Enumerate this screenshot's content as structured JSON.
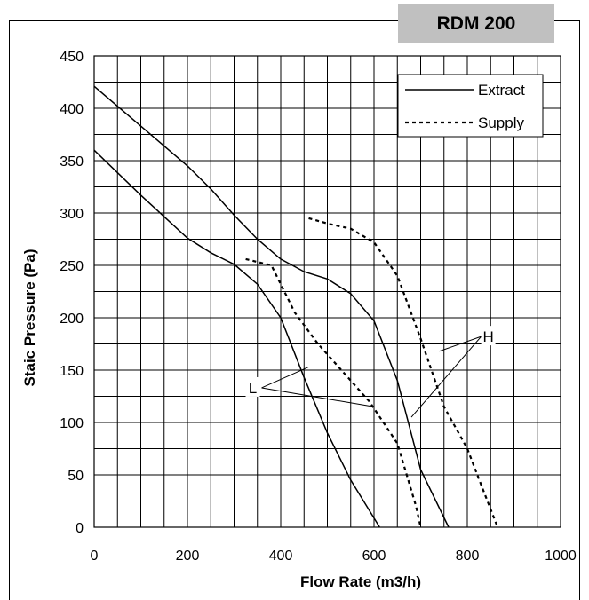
{
  "badge": "RDM 200",
  "chart_data": {
    "type": "line",
    "title": "RDM 200",
    "xlabel": "Flow Rate (m3/h)",
    "ylabel": "Staic Pressure (Pa)",
    "xlim": [
      0,
      1000
    ],
    "ylim": [
      0,
      450
    ],
    "xticks": [
      0,
      200,
      400,
      600,
      800,
      1000
    ],
    "yticks": [
      0,
      50,
      100,
      150,
      200,
      250,
      300,
      350,
      400,
      450
    ],
    "grid": true,
    "legend_position": "top-right",
    "legend": [
      "Extract",
      "Supply"
    ],
    "series": [
      {
        "name": "Extract",
        "level": "H",
        "style": "solid",
        "color": "#000000",
        "points": [
          [
            0,
            421
          ],
          [
            100,
            383
          ],
          [
            200,
            345
          ],
          [
            250,
            323
          ],
          [
            300,
            298
          ],
          [
            350,
            275
          ],
          [
            400,
            256
          ],
          [
            450,
            244
          ],
          [
            500,
            237
          ],
          [
            550,
            223
          ],
          [
            600,
            197
          ],
          [
            650,
            140
          ],
          [
            700,
            55
          ],
          [
            760,
            0
          ]
        ]
      },
      {
        "name": "Extract",
        "level": "L",
        "style": "solid",
        "color": "#000000",
        "points": [
          [
            0,
            360
          ],
          [
            100,
            317
          ],
          [
            200,
            276
          ],
          [
            250,
            262
          ],
          [
            300,
            251
          ],
          [
            350,
            232
          ],
          [
            400,
            200
          ],
          [
            450,
            143
          ],
          [
            500,
            90
          ],
          [
            550,
            45
          ],
          [
            612,
            0
          ]
        ]
      },
      {
        "name": "Supply",
        "level": "H",
        "style": "dotted",
        "color": "#000000",
        "points": [
          [
            460,
            295
          ],
          [
            500,
            290
          ],
          [
            550,
            285
          ],
          [
            600,
            272
          ],
          [
            650,
            240
          ],
          [
            700,
            180
          ],
          [
            750,
            115
          ],
          [
            800,
            75
          ],
          [
            830,
            40
          ],
          [
            865,
            0
          ]
        ]
      },
      {
        "name": "Supply",
        "level": "L",
        "style": "dotted",
        "color": "#000000",
        "points": [
          [
            325,
            256
          ],
          [
            380,
            250
          ],
          [
            430,
            205
          ],
          [
            480,
            175
          ],
          [
            530,
            150
          ],
          [
            590,
            120
          ],
          [
            650,
            80
          ],
          [
            690,
            20
          ],
          [
            700,
            0
          ]
        ]
      }
    ],
    "annotations": [
      {
        "text": "H",
        "x": 845,
        "y": 177,
        "targets": [
          [
            740,
            168
          ],
          [
            680,
            105
          ]
        ]
      },
      {
        "text": "L",
        "x": 340,
        "y": 128,
        "targets": [
          [
            460,
            153
          ],
          [
            600,
            115
          ]
        ]
      }
    ]
  }
}
